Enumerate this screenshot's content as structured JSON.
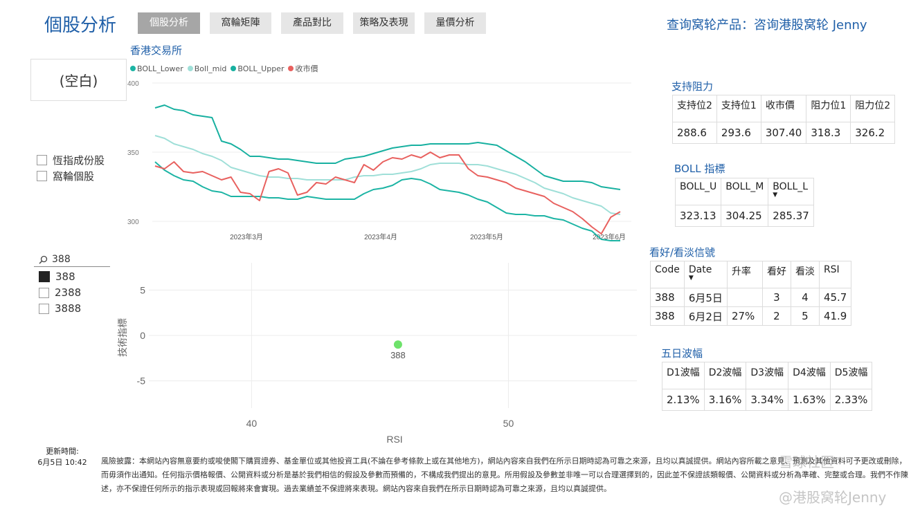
{
  "header": {
    "title": "個股分析",
    "tabs": [
      {
        "label": "個股分析",
        "active": true
      },
      {
        "label": "窩輪矩陣",
        "active": false
      },
      {
        "label": "產品對比",
        "active": false
      },
      {
        "label": "策略及表現",
        "active": false
      },
      {
        "label": "量價分析",
        "active": false
      }
    ],
    "promo": "查询窝轮产品：咨询港股窝轮 Jenny"
  },
  "sidebar": {
    "blank_card": "(空白)",
    "checks": [
      {
        "label": "恆指成份股",
        "checked": false
      },
      {
        "label": "窩輪個股",
        "checked": false
      }
    ],
    "search": {
      "icon": "search-icon",
      "value": "388"
    },
    "stocks": [
      {
        "label": "388",
        "checked": true
      },
      {
        "label": "2388",
        "checked": false
      },
      {
        "label": "3888",
        "checked": false
      }
    ]
  },
  "line_chart_section": {
    "subtitle": "香港交易所",
    "legend": [
      {
        "name": "BOLL_Lower",
        "color": "#1cb4a4"
      },
      {
        "name": "Boll_mid",
        "color": "#9fdfd8"
      },
      {
        "name": "BOLL_Upper",
        "color": "#17b0a0"
      },
      {
        "name": "收市價",
        "color": "#e8605e"
      }
    ]
  },
  "scatter_section": {
    "point_label": "388"
  },
  "support": {
    "title": "支持阻力",
    "headers": [
      "支持位2",
      "支持位1",
      "收市價",
      "阻力位1",
      "阻力位2"
    ],
    "values": [
      "288.6",
      "293.6",
      "307.40",
      "318.3",
      "326.2"
    ]
  },
  "boll": {
    "title": "BOLL 指標",
    "headers": [
      "BOLL_U",
      "BOLL_M",
      "BOLL_L"
    ],
    "values": [
      "323.13",
      "304.25",
      "285.37"
    ]
  },
  "signals": {
    "title": "看好/看淡信號",
    "headers": [
      "Code",
      "Date",
      "升率",
      "看好",
      "看淡",
      "RSI"
    ],
    "rows": [
      [
        "388",
        "6月5日",
        "",
        "3",
        "4",
        "45.7"
      ],
      [
        "388",
        "6月2日",
        "27%",
        "2",
        "5",
        "41.9"
      ]
    ]
  },
  "volatility": {
    "title": "五日波幅",
    "headers": [
      "D1波幅",
      "D2波幅",
      "D3波幅",
      "D4波幅",
      "D5波幅"
    ],
    "values": [
      "2.13%",
      "3.16%",
      "3.34%",
      "1.63%",
      "2.33%"
    ]
  },
  "footer": {
    "updated_label": "更新時間:",
    "updated_value": "6月5日 10:42",
    "disclaimer": "風險披露：本網站內容無意要約或唆使閣下購買證券、基金單位或其他投資工具(不論在參考條款上或在其他地方)，網站內容來自我們在所示日期時認為可靠之來源，且均以真誠提供。網站內容所載之意見、預測及其他資料可予更改或刪除，而毋須作出通知。任何指示價格報價、公開資料或分析是基於我們相信的假設及參數而預備的，不構成我們提出的意見。所用假設及參數並非唯一可以合理選擇到的，因此並不保證該類報價、公開資料或分析為準確、完整或合理。我們不作陳述，亦不保證任何所示的指示表現或回報將來會實現。過去業績並不保證將來表現。網站內容來自我們在所示日期時認為可靠之來源，且均以真誠提供。",
    "watermark_top": "雪球社区",
    "watermark_bottom": "@港股窝轮Jenny"
  },
  "chart_data": [
    {
      "type": "line",
      "x_ticks": [
        "2023年3月",
        "2023年4月",
        "2023年5月",
        "2023年6月"
      ],
      "ylim": [
        290,
        400
      ],
      "y_ticks": [
        300,
        350,
        400
      ],
      "grid": true,
      "legend": "top-left",
      "series": [
        {
          "name": "BOLL_Lower",
          "values": [
            343,
            337,
            333,
            330,
            329,
            325,
            322,
            321,
            318,
            318,
            318,
            318,
            317,
            317,
            316,
            316,
            318,
            317,
            316,
            316,
            316,
            316,
            320,
            323,
            324,
            326,
            330,
            331,
            330,
            327,
            323,
            322,
            321,
            319,
            316,
            314,
            310,
            306,
            305,
            305,
            304,
            304,
            302,
            301,
            298,
            295,
            293,
            287,
            286,
            286
          ]
        },
        {
          "name": "Boll_mid",
          "values": [
            362,
            360,
            356,
            354,
            352,
            349,
            347,
            344,
            339,
            337,
            335,
            333,
            332,
            332,
            331,
            331,
            330,
            330,
            330,
            330,
            330,
            332,
            333,
            333,
            334,
            334,
            335,
            336,
            338,
            341,
            342,
            342,
            342,
            341,
            341,
            340,
            338,
            336,
            334,
            331,
            328,
            324,
            322,
            320,
            317,
            315,
            313,
            311,
            306,
            305
          ]
        },
        {
          "name": "BOLL_Upper",
          "values": [
            382,
            384,
            381,
            380,
            377,
            376,
            375,
            358,
            356,
            352,
            347,
            347,
            346,
            345,
            345,
            344,
            343,
            342,
            342,
            342,
            345,
            346,
            347,
            349,
            351,
            353,
            354,
            355,
            355,
            356,
            356,
            356,
            356,
            356,
            357,
            356,
            355,
            351,
            347,
            343,
            338,
            333,
            331,
            329,
            329,
            329,
            328,
            325,
            324,
            323
          ]
        },
        {
          "name": "收市價",
          "values": [
            340,
            338,
            343,
            336,
            335,
            336,
            333,
            330,
            332,
            321,
            320,
            315,
            336,
            338,
            335,
            319,
            321,
            328,
            327,
            332,
            330,
            328,
            341,
            337,
            343,
            346,
            345,
            348,
            346,
            350,
            346,
            348,
            348,
            338,
            333,
            332,
            330,
            328,
            324,
            322,
            320,
            318,
            313,
            310,
            307,
            302,
            296,
            291,
            303,
            307
          ]
        }
      ]
    },
    {
      "type": "scatter",
      "xlabel": "RSI",
      "ylabel": "技術指標",
      "xlim": [
        36,
        55
      ],
      "ylim": [
        -8,
        8
      ],
      "x_ticks": [
        40,
        50
      ],
      "y_ticks": [
        5,
        0,
        -5
      ],
      "points": [
        {
          "label": "388",
          "x": 45.7,
          "y": -1,
          "color": "#6ee26b"
        }
      ]
    }
  ]
}
